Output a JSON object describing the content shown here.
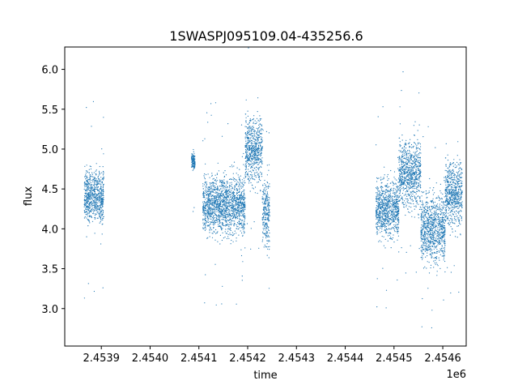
{
  "chart_data": {
    "type": "scatter",
    "title": "1SWASPJ095109.04-435256.6",
    "xlabel": "time",
    "ylabel": "flux",
    "x_offset_label": "1e6",
    "xlim": [
      2453825,
      2454648
    ],
    "ylim": [
      2.53,
      6.28
    ],
    "x_ticks": [
      2453900,
      2454000,
      2454100,
      2454200,
      2454300,
      2454400,
      2454500,
      2454600
    ],
    "x_tick_labels": [
      "2.4539",
      "2.4540",
      "2.4541",
      "2.4542",
      "2.4543",
      "2.4544",
      "2.4545",
      "2.4546"
    ],
    "y_ticks": [
      3.0,
      3.5,
      4.0,
      4.5,
      5.0,
      5.5,
      6.0
    ],
    "y_tick_labels": [
      "3.0",
      "3.5",
      "4.0",
      "4.5",
      "5.0",
      "5.5",
      "6.0"
    ],
    "grid": false,
    "point_color": "#1f77b4",
    "series_summary": [
      {
        "x": [
          2453865,
          2453905
        ],
        "flux_mean": 4.4,
        "flux_spread": 0.22
      },
      {
        "x": [
          2454085,
          2454092
        ],
        "flux_mean": 4.85,
        "flux_spread": 0.08
      },
      {
        "x": [
          2454108,
          2454195
        ],
        "flux_mean": 4.3,
        "flux_spread": 0.25
      },
      {
        "x": [
          2454195,
          2454230
        ],
        "flux_mean": 5.0,
        "flux_spread": 0.3
      },
      {
        "x": [
          2454230,
          2454245
        ],
        "flux_mean": 4.2,
        "flux_spread": 0.3
      },
      {
        "x": [
          2454463,
          2454510
        ],
        "flux_mean": 4.25,
        "flux_spread": 0.25
      },
      {
        "x": [
          2454510,
          2454555
        ],
        "flux_mean": 4.7,
        "flux_spread": 0.3
      },
      {
        "x": [
          2454555,
          2454605
        ],
        "flux_mean": 4.0,
        "flux_spread": 0.3
      },
      {
        "x": [
          2454605,
          2454640
        ],
        "flux_mean": 4.45,
        "flux_spread": 0.3
      }
    ]
  }
}
